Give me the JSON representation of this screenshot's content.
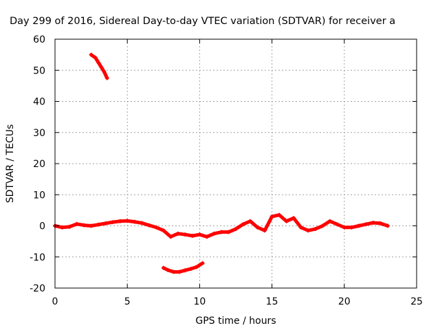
{
  "chart_data": {
    "type": "scatter",
    "title": "Day 299 of 2016, Sidereal Day-to-day VTEC variation (SDTVAR) for receiver a",
    "xlabel": "GPS time / hours",
    "ylabel": "SDTVAR / TECUs",
    "xlim": [
      0,
      25
    ],
    "ylim": [
      -20,
      60
    ],
    "xticks": [
      0,
      5,
      10,
      15,
      20,
      25
    ],
    "yticks": [
      -20,
      -10,
      0,
      10,
      20,
      30,
      40,
      50,
      60
    ],
    "grid": true,
    "marker": "+",
    "colors": {
      "series": "#ff0000",
      "grid": "#a0a0a0",
      "axes": "#000000"
    },
    "series": [
      {
        "color": "#ff0000",
        "segments": [
          {
            "x": [
              0.0,
              0.5,
              1.0,
              1.5,
              2.0,
              2.5,
              3.0,
              3.5,
              4.0,
              4.5,
              5.0,
              5.5,
              6.0,
              6.5,
              7.0,
              7.5,
              8.0,
              8.5,
              9.0,
              9.5,
              10.0,
              10.5,
              11.0,
              11.5,
              12.0,
              12.5,
              13.0,
              13.5,
              14.0,
              14.5,
              15.0,
              15.5,
              16.0,
              16.5,
              17.0,
              17.5,
              18.0,
              18.5,
              19.0,
              19.5,
              20.0,
              20.5,
              21.0,
              21.5,
              22.0,
              22.5,
              23.0
            ],
            "y": [
              0.0,
              -0.5,
              -0.3,
              0.6,
              0.2,
              0.0,
              0.4,
              0.8,
              1.2,
              1.5,
              1.6,
              1.3,
              0.9,
              0.2,
              -0.5,
              -1.5,
              -3.5,
              -2.5,
              -2.8,
              -3.2,
              -2.8,
              -3.5,
              -2.5,
              -2.0,
              -2.0,
              -1.0,
              0.5,
              1.5,
              -0.5,
              -1.5,
              3.0,
              3.5,
              1.5,
              2.5,
              -0.5,
              -1.5,
              -1.0,
              0.0,
              1.5,
              0.5,
              -0.5,
              -0.5,
              0.0,
              0.5,
              1.0,
              0.8,
              0.0
            ]
          },
          {
            "x": [
              7.5,
              7.8,
              8.2,
              8.6,
              9.0,
              9.4,
              9.8,
              10.2
            ],
            "y": [
              -13.5,
              -14.2,
              -14.8,
              -14.8,
              -14.3,
              -13.8,
              -13.2,
              -12.0
            ]
          },
          {
            "x": [
              2.5,
              2.8,
              3.0,
              3.2,
              3.4,
              3.6
            ],
            "y": [
              55.0,
              54.0,
              52.5,
              51.0,
              49.5,
              47.5
            ]
          }
        ]
      }
    ]
  }
}
